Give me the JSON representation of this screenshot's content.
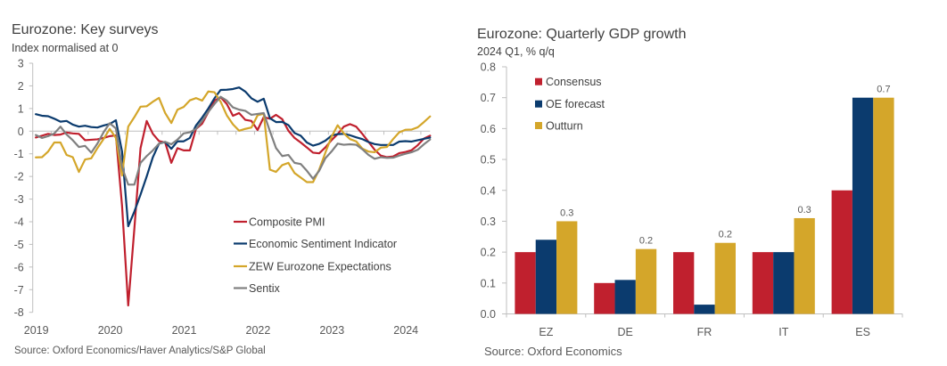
{
  "chart_data": [
    {
      "type": "line",
      "title": "Eurozone: Key surveys",
      "subtitle": "Index normalised at 0",
      "xlabel": "",
      "ylabel": "",
      "source": "Source: Oxford Economics/Haver Analytics/S&P Global",
      "x_start": "2019-01",
      "x_frequency": "monthly",
      "xlim": [
        2019.0,
        2024.375
      ],
      "ylim": [
        -8,
        3
      ],
      "yticks": [
        "3",
        "2",
        "1",
        "0",
        "-1",
        "-2",
        "-3",
        "-4",
        "-5",
        "-6",
        "-7",
        "-8"
      ],
      "xticks": [
        "2019",
        "2020",
        "2021",
        "2022",
        "2023",
        "2024"
      ],
      "grid": false,
      "legend_position": "lower-right inside plot",
      "series": [
        {
          "name": "Composite PMI",
          "color": "#C0202E",
          "values": [
            -0.28,
            -0.2,
            -0.12,
            -0.17,
            -0.15,
            -0.06,
            -0.1,
            -0.12,
            -0.4,
            -0.38,
            -0.36,
            -0.3,
            -0.22,
            -0.19,
            -3.3,
            -7.7,
            -4.3,
            -0.75,
            0.45,
            -0.12,
            -0.44,
            -0.5,
            -1.4,
            -0.75,
            -0.85,
            -0.85,
            0.1,
            0.33,
            0.84,
            1.35,
            1.5,
            1.2,
            0.68,
            0.8,
            0.5,
            0.45,
            0.05,
            0.62,
            0.55,
            0.72,
            0.53,
            0.02,
            -0.3,
            -0.5,
            -0.72,
            -0.95,
            -0.98,
            -0.72,
            -0.4,
            -0.13,
            0.2,
            0.31,
            0.2,
            -0.12,
            -0.47,
            -0.82,
            -1.08,
            -1.15,
            -1.12,
            -0.97,
            -0.92,
            -0.84,
            -0.62,
            -0.33,
            -0.2
          ]
        },
        {
          "name": "Economic Sentiment Indicator",
          "color": "#0B3B6E",
          "values": [
            0.75,
            0.68,
            0.66,
            0.55,
            0.42,
            0.45,
            0.29,
            0.2,
            0.24,
            0.18,
            0.16,
            0.25,
            0.32,
            0.48,
            -0.9,
            -4.2,
            -3.55,
            -2.8,
            -2.0,
            -1.15,
            -0.55,
            -0.48,
            -0.78,
            -0.45,
            -0.45,
            -0.3,
            0.25,
            0.6,
            1.0,
            1.45,
            1.82,
            1.83,
            1.86,
            1.93,
            1.75,
            1.45,
            1.3,
            1.43,
            0.57,
            0.4,
            0.41,
            0.27,
            -0.08,
            -0.2,
            -0.5,
            -0.64,
            -0.56,
            -0.42,
            -0.2,
            -0.13,
            -0.12,
            -0.18,
            -0.27,
            -0.35,
            -0.48,
            -0.57,
            -0.61,
            -0.61,
            -0.61,
            -0.46,
            -0.44,
            -0.46,
            -0.4,
            -0.34,
            -0.28
          ]
        },
        {
          "name": "ZEW Eurozone Expectations",
          "color": "#D4A62A",
          "values": [
            -1.16,
            -1.15,
            -0.9,
            -0.5,
            -0.5,
            -1.05,
            -1.15,
            -1.8,
            -1.25,
            -1.2,
            -0.75,
            -0.35,
            0.1,
            -0.3,
            -1.96,
            0.2,
            0.62,
            1.08,
            1.1,
            1.3,
            1.47,
            0.8,
            0.36,
            0.95,
            1.07,
            1.36,
            1.46,
            1.35,
            1.75,
            1.72,
            1.3,
            0.7,
            0.3,
            0.02,
            0.1,
            0.16,
            0.7,
            0.77,
            -1.7,
            -1.8,
            -1.5,
            -1.4,
            -1.85,
            -2.05,
            -2.25,
            -2.25,
            -1.7,
            -0.95,
            -0.25,
            0.26,
            -0.1,
            -0.35,
            -0.45,
            -0.77,
            -0.9,
            -0.93,
            -0.73,
            -0.7,
            -0.35,
            -0.05,
            0.06,
            0.07,
            0.17,
            0.4,
            0.65
          ]
        },
        {
          "name": "Sentix",
          "color": "#808080",
          "values": [
            -0.17,
            -0.3,
            -0.22,
            -0.1,
            0.2,
            -0.15,
            -0.4,
            -0.7,
            -0.65,
            -0.95,
            -0.55,
            -0.05,
            0.35,
            0.12,
            -1.6,
            -2.36,
            -2.36,
            -1.4,
            -1.1,
            -0.85,
            -0.55,
            -0.47,
            -0.58,
            -0.37,
            -0.1,
            -0.05,
            0.1,
            0.45,
            0.85,
            1.2,
            1.52,
            1.35,
            1.05,
            0.95,
            0.9,
            0.72,
            0.76,
            0.8,
            0.0,
            -0.75,
            -1.1,
            -1.05,
            -1.4,
            -1.45,
            -1.75,
            -2.1,
            -1.75,
            -1.2,
            -0.9,
            -0.55,
            -0.6,
            -0.58,
            -0.6,
            -0.8,
            -1.05,
            -1.22,
            -1.15,
            -1.18,
            -1.17,
            -1.08,
            -1.0,
            -0.93,
            -0.82,
            -0.58,
            -0.37
          ]
        }
      ]
    },
    {
      "type": "bar",
      "title": "Eurozone: Quarterly GDP growth",
      "subtitle": "2024 Q1, % q/q",
      "xlabel": "",
      "ylabel": "",
      "source": "Source: Oxford Economics",
      "categories": [
        "EZ",
        "DE",
        "FR",
        "IT",
        "ES"
      ],
      "ylim": [
        0,
        0.8
      ],
      "yticks": [
        "0.8",
        "0.7",
        "0.6",
        "0.5",
        "0.4",
        "0.3",
        "0.2",
        "0.1",
        "0.0"
      ],
      "grid": false,
      "legend_position": "top-left inside plot",
      "series": [
        {
          "name": "Consensus",
          "color": "#C0202E",
          "values": [
            0.2,
            0.1,
            0.2,
            0.2,
            0.4
          ]
        },
        {
          "name": "OE forecast",
          "color": "#0B3B6E",
          "values": [
            0.24,
            0.11,
            0.03,
            0.2,
            0.7
          ]
        },
        {
          "name": "Outturn",
          "color": "#D4A62A",
          "values": [
            0.3,
            0.21,
            0.23,
            0.31,
            0.7
          ]
        }
      ],
      "data_labels": {
        "series": "Outturn",
        "labels": [
          "0.3",
          "0.2",
          "0.2",
          "0.3",
          "0.7"
        ]
      }
    }
  ]
}
